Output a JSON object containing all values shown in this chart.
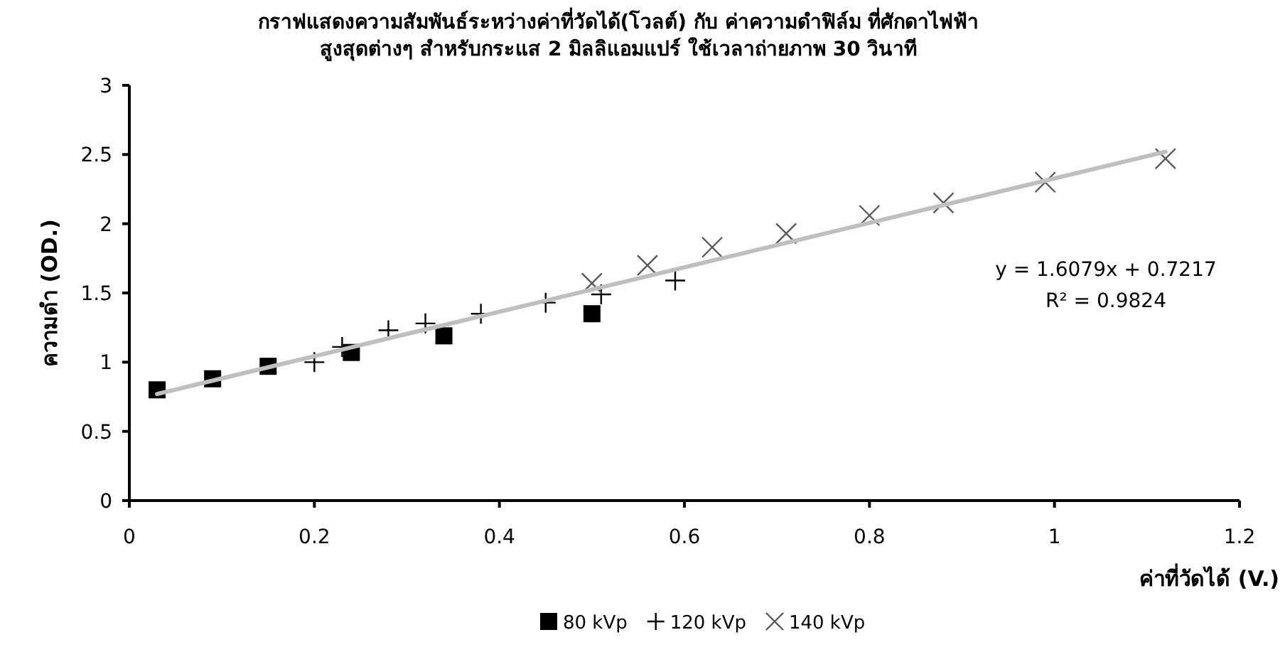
{
  "chart_data": {
    "type": "scatter",
    "title": "กราฟแสดงความสัมพันธ์ระหว่างค่าที่วัดได้(โวลต์) กับ ค่าความดำฟิล์ม ที่ศักดาไฟฟ้า\nสูงสุดต่างๆ สำหรับกระแส 2 มิลลิแอมแปร์ ใช้เวลาถ่ายภาพ 30 วินาที",
    "xlabel": "ค่าที่วัดได้ (V.)",
    "ylabel": "ความดำ (OD.)",
    "series": [
      {
        "name": "80 kVp",
        "color": "#000000",
        "marker": "square",
        "x": [
          0.03,
          0.09,
          0.15,
          0.24,
          0.34,
          0.5
        ],
        "values": [
          0.8,
          0.88,
          0.97,
          1.07,
          1.19,
          1.35
        ]
      },
      {
        "name": "120 kVp",
        "color": "#000000",
        "marker": "plus",
        "x": [
          0.2,
          0.23,
          0.28,
          0.32,
          0.38,
          0.45,
          0.51,
          0.59
        ],
        "values": [
          1.0,
          1.11,
          1.23,
          1.28,
          1.35,
          1.43,
          1.49,
          1.59
        ]
      },
      {
        "name": "140 kVp",
        "color": "#595959",
        "marker": "cross",
        "x": [
          0.5,
          0.56,
          0.63,
          0.71,
          0.8,
          0.88,
          0.99,
          1.12
        ],
        "values": [
          1.57,
          1.7,
          1.83,
          1.93,
          2.06,
          2.15,
          2.3,
          2.47
        ]
      },
      {
        "type": "line",
        "color": "#bfbfbf",
        "x": [
          0.03,
          1.12
        ],
        "values": [
          0.77,
          2.52
        ]
      }
    ],
    "annotations": [
      "y = 1.6079x + 0.7217",
      "R² = 0.9824"
    ],
    "xlim": [
      0,
      1.2
    ],
    "xticks": [
      0,
      0.2,
      0.4,
      0.6,
      0.8,
      1,
      1.2
    ],
    "ylim": [
      0,
      3
    ],
    "yticks": [
      0,
      0.5,
      1,
      1.5,
      2,
      2.5,
      3
    ],
    "legend": "bottom"
  }
}
